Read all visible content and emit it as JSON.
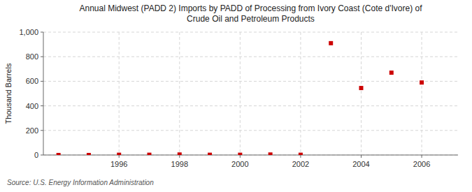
{
  "chart_data": {
    "type": "scatter",
    "title": "Annual Midwest (PADD 2) Imports by PADD of Processing from Ivory Coast (Cote d'Ivore) of\nCrude Oil and Petroleum Products",
    "y_label": "Thousand Barrels",
    "source": "Source: U.S. Energy Information Administration",
    "x": [
      1994,
      1995,
      1996,
      1997,
      1998,
      1999,
      2000,
      2001,
      2002,
      2003,
      2004,
      2005,
      2006
    ],
    "values": [
      0,
      0,
      2,
      2,
      4,
      2,
      2,
      4,
      2,
      910,
      545,
      670,
      590
    ],
    "color": "#cc0000",
    "marker": "square",
    "xlim": [
      1993.5,
      2007.2
    ],
    "xticks": [
      1996,
      1998,
      2000,
      2002,
      2004,
      2006
    ],
    "ylim": [
      0,
      1000
    ],
    "yticks": [
      0,
      200,
      400,
      600,
      800,
      {
        "value": 1000,
        "label": "1,000"
      }
    ],
    "grid": true
  }
}
